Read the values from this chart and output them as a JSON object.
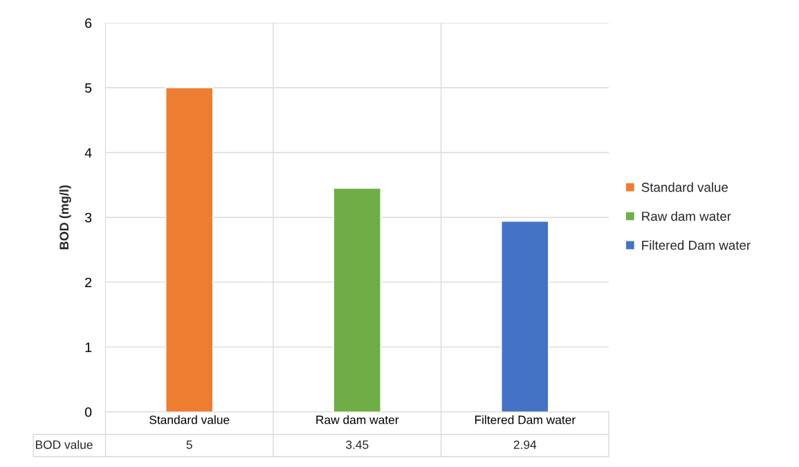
{
  "chart_data": {
    "type": "bar",
    "ylabel": "BOD (mg/l)",
    "categories": [
      "Standard value",
      "Raw dam water",
      "Filtered Dam water"
    ],
    "series": [
      {
        "name": "Standard value",
        "color": "#ed7d31",
        "values": [
          5,
          null,
          null
        ]
      },
      {
        "name": "Raw dam water",
        "color": "#70ad47",
        "values": [
          null,
          3.45,
          null
        ]
      },
      {
        "name": "Filtered Dam water",
        "color": "#4472c4",
        "values": [
          null,
          null,
          2.94
        ]
      }
    ],
    "annotations": [
      "BOD value"
    ],
    "ylim": [
      0,
      6
    ],
    "yticks": [
      0,
      1,
      2,
      3,
      4,
      5,
      6
    ],
    "grid": true,
    "legend": "right",
    "data_labels": true
  }
}
